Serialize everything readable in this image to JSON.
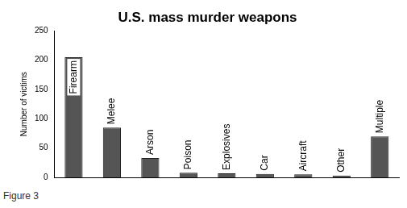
{
  "chart_data": {
    "type": "bar",
    "title": "U.S. mass murder weapons",
    "caption": "Figure 3",
    "y_label": "Number of victims",
    "categories": [
      "Firearm",
      "Melee",
      "Arson",
      "Poison",
      "Explosives",
      "Car",
      "Aircraft",
      "Other",
      "Multiple"
    ],
    "values": [
      205,
      85,
      33,
      8,
      7,
      6,
      5,
      3,
      70
    ],
    "color": "#555555",
    "ylim": [
      0,
      250
    ],
    "yticks": [
      0,
      50,
      100,
      150,
      200,
      250
    ],
    "grid": false,
    "tick_labels": "y"
  }
}
